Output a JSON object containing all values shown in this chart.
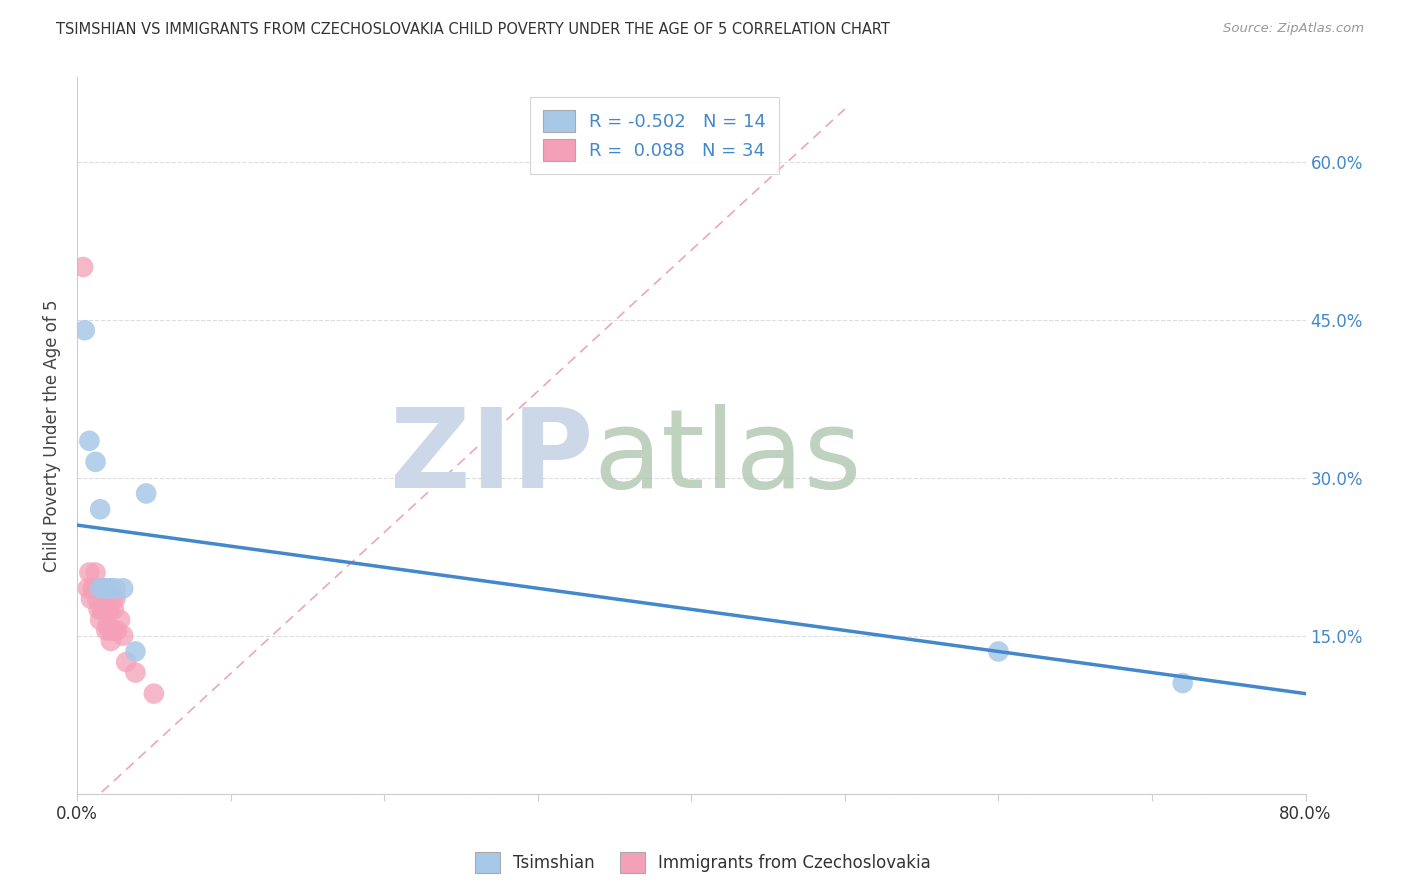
{
  "title": "TSIMSHIAN VS IMMIGRANTS FROM CZECHOSLOVAKIA CHILD POVERTY UNDER THE AGE OF 5 CORRELATION CHART",
  "source": "Source: ZipAtlas.com",
  "ylabel": "Child Poverty Under the Age of 5",
  "xmin": 0.0,
  "xmax": 0.8,
  "ymin": 0.0,
  "ymax": 0.68,
  "yticks": [
    0.0,
    0.15,
    0.3,
    0.45,
    0.6
  ],
  "ytick_labels_right": [
    "",
    "15.0%",
    "30.0%",
    "45.0%",
    "60.0%"
  ],
  "xticks": [
    0.0,
    0.1,
    0.2,
    0.3,
    0.4,
    0.5,
    0.6,
    0.7,
    0.8
  ],
  "xtick_labels": [
    "0.0%",
    "",
    "",
    "",
    "",
    "",
    "",
    "",
    "80.0%"
  ],
  "legend_labels": [
    "Tsimshian",
    "Immigrants from Czechoslovakia"
  ],
  "R_tsimshian": -0.502,
  "N_tsimshian": 14,
  "R_czech": 0.088,
  "N_czech": 34,
  "color_tsimshian": "#a8c8e8",
  "color_czech": "#f4a0b8",
  "line_color_tsimshian": "#4488cc",
  "line_color_czech": "#e88098",
  "tsimshian_x": [
    0.005,
    0.008,
    0.012,
    0.015,
    0.018,
    0.02,
    0.022,
    0.03,
    0.038,
    0.045,
    0.6,
    0.72,
    0.015,
    0.025
  ],
  "tsimshian_y": [
    0.44,
    0.335,
    0.315,
    0.27,
    0.195,
    0.195,
    0.195,
    0.195,
    0.135,
    0.285,
    0.135,
    0.105,
    0.195,
    0.195
  ],
  "czech_x": [
    0.004,
    0.007,
    0.008,
    0.009,
    0.01,
    0.011,
    0.012,
    0.013,
    0.014,
    0.015,
    0.015,
    0.016,
    0.016,
    0.017,
    0.018,
    0.018,
    0.019,
    0.019,
    0.02,
    0.02,
    0.021,
    0.021,
    0.022,
    0.023,
    0.023,
    0.024,
    0.024,
    0.025,
    0.026,
    0.028,
    0.03,
    0.032,
    0.038,
    0.05
  ],
  "czech_y": [
    0.5,
    0.195,
    0.21,
    0.185,
    0.195,
    0.195,
    0.21,
    0.185,
    0.175,
    0.165,
    0.195,
    0.19,
    0.175,
    0.175,
    0.175,
    0.195,
    0.155,
    0.175,
    0.16,
    0.175,
    0.155,
    0.175,
    0.145,
    0.155,
    0.185,
    0.155,
    0.175,
    0.185,
    0.155,
    0.165,
    0.15,
    0.125,
    0.115,
    0.095
  ],
  "watermark_zip_color": "#ccd8e8",
  "watermark_atlas_color": "#b8ccb8",
  "bg_color": "#ffffff",
  "grid_color": "#dddddd",
  "axis_color": "#cccccc",
  "right_label_color": "#4488cc",
  "title_color": "#333333",
  "source_color": "#999999",
  "ylabel_color": "#444444"
}
